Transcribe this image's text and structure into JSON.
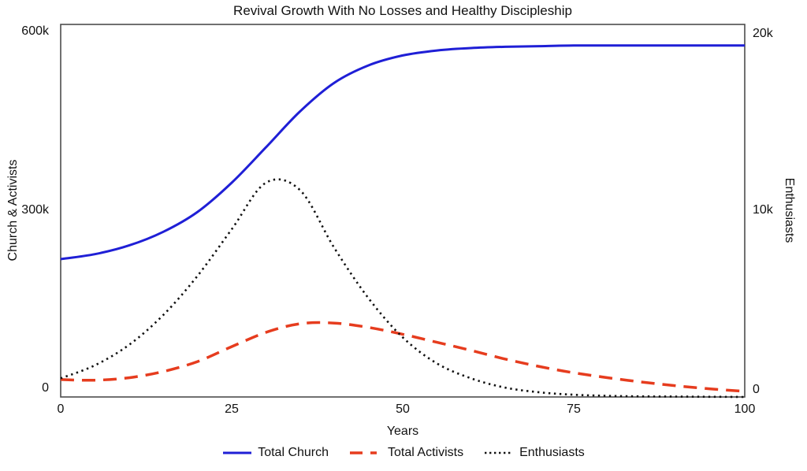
{
  "chart_data": {
    "type": "line",
    "title": "Revival Growth With No Losses and Healthy Discipleship",
    "xlabel": "Years",
    "ylabel_left": "Church & Activists",
    "ylabel_right": "Enthusiasts",
    "grid": false,
    "legend_position": "bottom",
    "xlim": [
      0,
      100
    ],
    "ylim_left": [
      0,
      600000
    ],
    "ylim_right": [
      0,
      20000
    ],
    "x_tick_labels": [
      "0",
      "25",
      "50",
      "75",
      "100"
    ],
    "x_tick_values": [
      0,
      25,
      50,
      75,
      100
    ],
    "left_tick_labels": [
      "600k",
      "300k",
      "0"
    ],
    "left_tick_values": [
      600000,
      300000,
      0
    ],
    "right_tick_labels": [
      "20k",
      "10k",
      "0"
    ],
    "right_tick_values": [
      20000,
      10000,
      0
    ],
    "x": [
      0,
      5,
      10,
      15,
      20,
      25,
      30,
      35,
      40,
      45,
      50,
      55,
      60,
      65,
      70,
      75,
      80,
      85,
      90,
      95,
      100
    ],
    "series": [
      {
        "name": "Total Church",
        "axis": "left",
        "color": "#1f1fd6",
        "style": "solid",
        "values": [
          222000,
          230000,
          244000,
          266000,
          298000,
          345000,
          402000,
          460000,
          506000,
          534000,
          550000,
          558000,
          562000,
          564000,
          565000,
          566000,
          566000,
          566000,
          566000,
          566000,
          566000
        ]
      },
      {
        "name": "Total Activists",
        "axis": "left",
        "color": "#e63c1e",
        "style": "dashed",
        "values": [
          28000,
          27000,
          31000,
          41000,
          57000,
          81000,
          104000,
          118000,
          119000,
          112000,
          101000,
          88000,
          75000,
          61000,
          49000,
          39000,
          31000,
          24000,
          18000,
          13000,
          9000
        ]
      },
      {
        "name": "Enthusiasts",
        "axis": "right",
        "color": "#111111",
        "style": "dotted",
        "values": [
          1000,
          1700,
          2800,
          4400,
          6500,
          9000,
          11500,
          11100,
          8000,
          5300,
          3200,
          1800,
          1000,
          500,
          250,
          120,
          60,
          30,
          20,
          10,
          0
        ]
      }
    ],
    "frame_color": "#4d4d4d"
  }
}
